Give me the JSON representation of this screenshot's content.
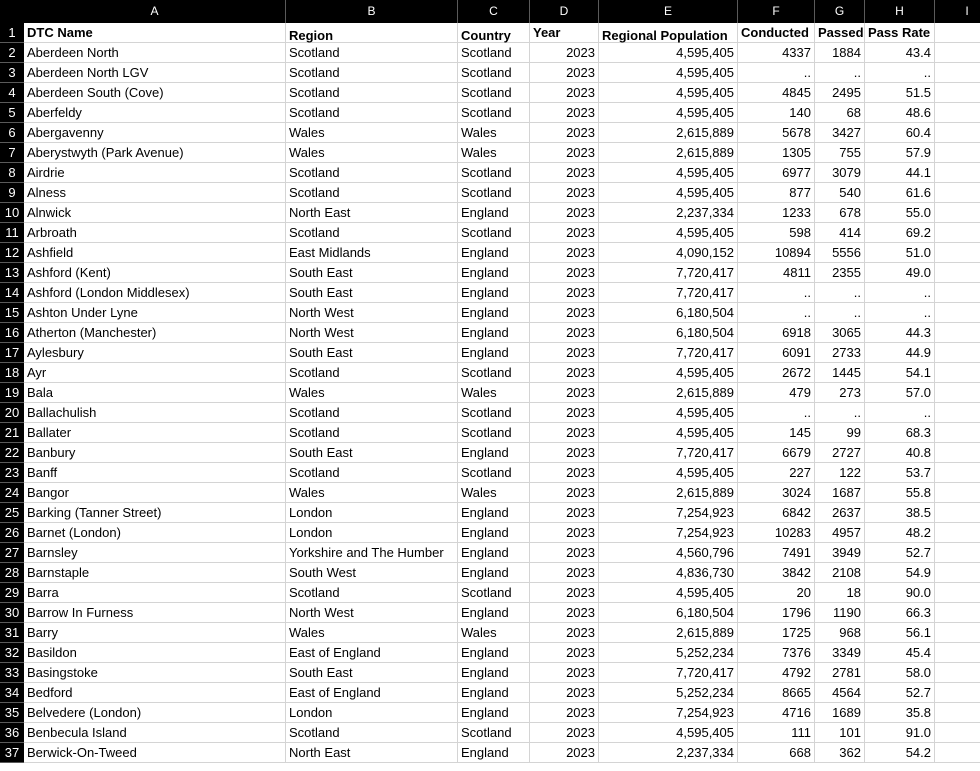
{
  "column_letters": [
    "A",
    "B",
    "C",
    "D",
    "E",
    "F",
    "G",
    "H",
    "I"
  ],
  "header_row": [
    "DTC Name",
    "Region",
    "Country",
    "Year",
    "Regional Population",
    "Conducted",
    "Passed",
    "Pass Rate"
  ],
  "rows": [
    [
      "Aberdeen North",
      "Scotland",
      "Scotland",
      "2023",
      "4,595,405",
      "4337",
      "1884",
      "43.4"
    ],
    [
      "Aberdeen North LGV",
      "Scotland",
      "Scotland",
      "2023",
      "4,595,405",
      "..",
      "..",
      ".."
    ],
    [
      "Aberdeen South (Cove)",
      "Scotland",
      "Scotland",
      "2023",
      "4,595,405",
      "4845",
      "2495",
      "51.5"
    ],
    [
      "Aberfeldy",
      "Scotland",
      "Scotland",
      "2023",
      "4,595,405",
      "140",
      "68",
      "48.6"
    ],
    [
      "Abergavenny",
      "Wales",
      "Wales",
      "2023",
      "2,615,889",
      "5678",
      "3427",
      "60.4"
    ],
    [
      "Aberystwyth (Park Avenue)",
      "Wales",
      "Wales",
      "2023",
      "2,615,889",
      "1305",
      "755",
      "57.9"
    ],
    [
      "Airdrie",
      "Scotland",
      "Scotland",
      "2023",
      "4,595,405",
      "6977",
      "3079",
      "44.1"
    ],
    [
      "Alness",
      "Scotland",
      "Scotland",
      "2023",
      "4,595,405",
      "877",
      "540",
      "61.6"
    ],
    [
      "Alnwick",
      "North East",
      "England",
      "2023",
      "2,237,334",
      "1233",
      "678",
      "55.0"
    ],
    [
      "Arbroath",
      "Scotland",
      "Scotland",
      "2023",
      "4,595,405",
      "598",
      "414",
      "69.2"
    ],
    [
      "Ashfield",
      "East Midlands",
      "England",
      "2023",
      "4,090,152",
      "10894",
      "5556",
      "51.0"
    ],
    [
      "Ashford (Kent)",
      "South East",
      "England",
      "2023",
      "7,720,417",
      "4811",
      "2355",
      "49.0"
    ],
    [
      "Ashford (London Middlesex)",
      "South East",
      "England",
      "2023",
      "7,720,417",
      "..",
      "..",
      ".."
    ],
    [
      "Ashton Under Lyne",
      "North West",
      "England",
      "2023",
      "6,180,504",
      "..",
      "..",
      ".."
    ],
    [
      "Atherton (Manchester)",
      "North West",
      "England",
      "2023",
      "6,180,504",
      "6918",
      "3065",
      "44.3"
    ],
    [
      "Aylesbury",
      "South East",
      "England",
      "2023",
      "7,720,417",
      "6091",
      "2733",
      "44.9"
    ],
    [
      "Ayr",
      "Scotland",
      "Scotland",
      "2023",
      "4,595,405",
      "2672",
      "1445",
      "54.1"
    ],
    [
      "Bala",
      "Wales",
      "Wales",
      "2023",
      "2,615,889",
      "479",
      "273",
      "57.0"
    ],
    [
      "Ballachulish",
      "Scotland",
      "Scotland",
      "2023",
      "4,595,405",
      "..",
      "..",
      ".."
    ],
    [
      "Ballater",
      "Scotland",
      "Scotland",
      "2023",
      "4,595,405",
      "145",
      "99",
      "68.3"
    ],
    [
      "Banbury",
      "South East",
      "England",
      "2023",
      "7,720,417",
      "6679",
      "2727",
      "40.8"
    ],
    [
      "Banff",
      "Scotland",
      "Scotland",
      "2023",
      "4,595,405",
      "227",
      "122",
      "53.7"
    ],
    [
      "Bangor",
      "Wales",
      "Wales",
      "2023",
      "2,615,889",
      "3024",
      "1687",
      "55.8"
    ],
    [
      "Barking (Tanner Street)",
      "London",
      "England",
      "2023",
      "7,254,923",
      "6842",
      "2637",
      "38.5"
    ],
    [
      "Barnet (London)",
      "London",
      "England",
      "2023",
      "7,254,923",
      "10283",
      "4957",
      "48.2"
    ],
    [
      "Barnsley",
      "Yorkshire and The Humber",
      "England",
      "2023",
      "4,560,796",
      "7491",
      "3949",
      "52.7"
    ],
    [
      "Barnstaple",
      "South West",
      "England",
      "2023",
      "4,836,730",
      "3842",
      "2108",
      "54.9"
    ],
    [
      "Barra",
      "Scotland",
      "Scotland",
      "2023",
      "4,595,405",
      "20",
      "18",
      "90.0"
    ],
    [
      "Barrow In Furness",
      "North West",
      "England",
      "2023",
      "6,180,504",
      "1796",
      "1190",
      "66.3"
    ],
    [
      "Barry",
      "Wales",
      "Wales",
      "2023",
      "2,615,889",
      "1725",
      "968",
      "56.1"
    ],
    [
      "Basildon",
      "East of England",
      "England",
      "2023",
      "5,252,234",
      "7376",
      "3349",
      "45.4"
    ],
    [
      "Basingstoke",
      "South East",
      "England",
      "2023",
      "7,720,417",
      "4792",
      "2781",
      "58.0"
    ],
    [
      "Bedford",
      "East of England",
      "England",
      "2023",
      "5,252,234",
      "8665",
      "4564",
      "52.7"
    ],
    [
      "Belvedere (London)",
      "London",
      "England",
      "2023",
      "7,254,923",
      "4716",
      "1689",
      "35.8"
    ],
    [
      "Benbecula Island",
      "Scotland",
      "Scotland",
      "2023",
      "4,595,405",
      "111",
      "101",
      "91.0"
    ],
    [
      "Berwick-On-Tweed",
      "North East",
      "England",
      "2023",
      "2,237,334",
      "668",
      "362",
      "54.2"
    ]
  ]
}
